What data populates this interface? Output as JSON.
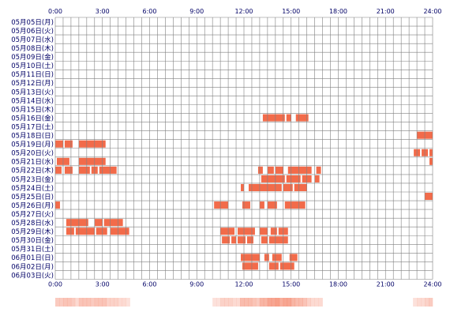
{
  "chart_data": {
    "type": "heatmap",
    "title": "",
    "xlabel": "",
    "ylabel": "",
    "x_ticks": [
      "0:00",
      "3:00",
      "6:00",
      "9:00",
      "12:00",
      "15:00",
      "18:00",
      "21:00",
      "24:00"
    ],
    "x_range_hours": [
      0,
      24
    ],
    "grid": true,
    "colors": {
      "block": "#f26b4a",
      "grid": "#808080",
      "label": "#000066",
      "summary_base": "#fde8e0"
    },
    "days": [
      {
        "label": "05月05日(月)",
        "blocks": []
      },
      {
        "label": "05月06日(火)",
        "blocks": []
      },
      {
        "label": "05月07日(水)",
        "blocks": []
      },
      {
        "label": "05月08日(木)",
        "blocks": []
      },
      {
        "label": "05月09日(金)",
        "blocks": []
      },
      {
        "label": "05月10日(土)",
        "blocks": []
      },
      {
        "label": "05月11日(日)",
        "blocks": []
      },
      {
        "label": "05月12日(月)",
        "blocks": []
      },
      {
        "label": "05月13日(火)",
        "blocks": []
      },
      {
        "label": "05月14日(水)",
        "blocks": []
      },
      {
        "label": "05月15日(木)",
        "blocks": []
      },
      {
        "label": "05月16日(金)",
        "blocks": [
          [
            13.2,
            14.6
          ],
          [
            14.7,
            15.0
          ],
          [
            15.3,
            16.1
          ]
        ]
      },
      {
        "label": "05月17日(土)",
        "blocks": []
      },
      {
        "label": "05月18日(日)",
        "blocks": [
          [
            23.0,
            24.0
          ]
        ]
      },
      {
        "label": "05月19日(月)",
        "blocks": [
          [
            0.0,
            0.5
          ],
          [
            0.6,
            1.1
          ],
          [
            1.5,
            3.2
          ]
        ]
      },
      {
        "label": "05月20日(火)",
        "blocks": [
          [
            22.8,
            23.2
          ],
          [
            23.3,
            23.7
          ],
          [
            23.8,
            24.0
          ]
        ]
      },
      {
        "label": "05月21日(水)",
        "blocks": [
          [
            0.1,
            0.9
          ],
          [
            1.5,
            3.2
          ],
          [
            23.8,
            24.0
          ]
        ]
      },
      {
        "label": "05月22日(木)",
        "blocks": [
          [
            0.0,
            0.4
          ],
          [
            0.6,
            1.1
          ],
          [
            1.5,
            2.2
          ],
          [
            2.3,
            2.7
          ],
          [
            2.8,
            3.9
          ],
          [
            12.9,
            13.2
          ],
          [
            13.5,
            13.9
          ],
          [
            14.0,
            14.5
          ],
          [
            14.8,
            16.3
          ],
          [
            16.6,
            16.9
          ]
        ]
      },
      {
        "label": "05月23日(金)",
        "blocks": [
          [
            13.1,
            14.6
          ],
          [
            14.7,
            15.6
          ],
          [
            15.7,
            16.3
          ],
          [
            16.5,
            16.8
          ]
        ]
      },
      {
        "label": "05月24日(土)",
        "blocks": [
          [
            11.8,
            12.0
          ],
          [
            12.3,
            14.4
          ],
          [
            14.5,
            15.1
          ],
          [
            15.2,
            16.0
          ]
        ]
      },
      {
        "label": "05月25日(日)",
        "blocks": [
          [
            23.5,
            24.0
          ]
        ]
      },
      {
        "label": "05月26日(月)",
        "blocks": [
          [
            0.0,
            0.3
          ],
          [
            10.1,
            11.0
          ],
          [
            11.9,
            12.4
          ],
          [
            13.0,
            13.3
          ],
          [
            13.5,
            14.1
          ],
          [
            14.6,
            15.9
          ]
        ]
      },
      {
        "label": "05月27日(火)",
        "blocks": []
      },
      {
        "label": "05月28日(水)",
        "blocks": [
          [
            0.7,
            2.1
          ],
          [
            2.5,
            3.0
          ],
          [
            3.1,
            4.3
          ]
        ]
      },
      {
        "label": "05月29日(木)",
        "blocks": [
          [
            0.7,
            1.2
          ],
          [
            1.3,
            2.5
          ],
          [
            2.6,
            3.3
          ],
          [
            3.5,
            4.7
          ],
          [
            10.5,
            11.4
          ],
          [
            11.6,
            12.7
          ],
          [
            13.0,
            13.5
          ],
          [
            13.7,
            14.1
          ],
          [
            14.2,
            14.8
          ]
        ]
      },
      {
        "label": "05月30日(金)",
        "blocks": [
          [
            10.6,
            11.1
          ],
          [
            11.2,
            11.5
          ],
          [
            11.6,
            12.1
          ],
          [
            12.2,
            12.6
          ],
          [
            13.1,
            13.5
          ],
          [
            13.6,
            14.8
          ]
        ]
      },
      {
        "label": "05月31日(土)",
        "blocks": []
      },
      {
        "label": "06月01日(日)",
        "blocks": [
          [
            11.8,
            13.0
          ],
          [
            13.3,
            13.6
          ],
          [
            13.8,
            14.4
          ],
          [
            14.9,
            15.4
          ]
        ]
      },
      {
        "label": "06月02日(月)",
        "blocks": [
          [
            11.9,
            12.9
          ],
          [
            13.6,
            14.2
          ],
          [
            14.3,
            15.2
          ]
        ]
      },
      {
        "label": "06月03日(火)",
        "blocks": []
      }
    ]
  }
}
